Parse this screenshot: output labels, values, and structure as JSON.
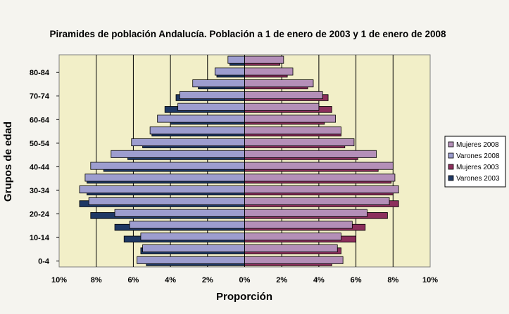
{
  "chart_data": {
    "type": "bar",
    "orientation": "horizontal-population-pyramid",
    "title": "Piramides de población Andalucía. Población a 1 de enero de 2003 y 1 de enero de 2008",
    "xlabel": "Proporción",
    "ylabel": "Grupos de edad",
    "xlim": [
      -10,
      10
    ],
    "x_ticks": [
      -10,
      -8,
      -6,
      -4,
      -2,
      0,
      2,
      4,
      6,
      8,
      10
    ],
    "x_tick_labels": [
      "10%",
      "8%",
      "6%",
      "4%",
      "2%",
      "0%",
      "2%",
      "4%",
      "6%",
      "8%",
      "10%"
    ],
    "categories": [
      "0-4",
      "5-9",
      "10-14",
      "15-19",
      "20-24",
      "25-29",
      "30-34",
      "35-39",
      "40-44",
      "45-49",
      "50-54",
      "55-59",
      "60-64",
      "65-69",
      "70-74",
      "75-79",
      "80-84",
      "85+"
    ],
    "category_labels_shown": [
      "0-4",
      "10-14",
      "20-24",
      "30-34",
      "40-44",
      "50-54",
      "60-64",
      "70-74",
      "80-84"
    ],
    "grid": "vertical lines at major ticks",
    "legend_position": "right",
    "series": [
      {
        "name": "Mujeres 2008",
        "side": "right",
        "color": "#b48fb8",
        "values": [
          5.3,
          5.0,
          5.2,
          5.8,
          6.6,
          7.8,
          8.3,
          8.1,
          8.0,
          7.1,
          5.9,
          5.2,
          4.9,
          4.0,
          4.2,
          3.7,
          2.6,
          2.1
        ]
      },
      {
        "name": "Varones 2008",
        "side": "left",
        "color": "#9d9dcf",
        "values": [
          5.8,
          5.5,
          5.6,
          6.2,
          7.0,
          8.4,
          8.9,
          8.6,
          8.3,
          7.2,
          6.1,
          5.1,
          4.7,
          3.6,
          3.5,
          2.8,
          1.6,
          0.9
        ]
      },
      {
        "name": "Mujeres 2003",
        "side": "right",
        "color": "#8c2f5c",
        "values": [
          4.7,
          5.2,
          6.0,
          6.5,
          7.7,
          8.3,
          8.0,
          7.9,
          7.2,
          6.1,
          5.4,
          5.2,
          4.3,
          4.7,
          4.5,
          3.4,
          2.3,
          1.9
        ]
      },
      {
        "name": "Varones 2003",
        "side": "left",
        "color": "#1f3864",
        "values": [
          5.3,
          5.6,
          6.5,
          7.0,
          8.3,
          8.9,
          8.5,
          8.5,
          7.6,
          6.3,
          5.5,
          5.0,
          4.0,
          4.3,
          3.7,
          2.5,
          1.5,
          0.8
        ]
      }
    ]
  },
  "chart_background": "#f2efc8"
}
